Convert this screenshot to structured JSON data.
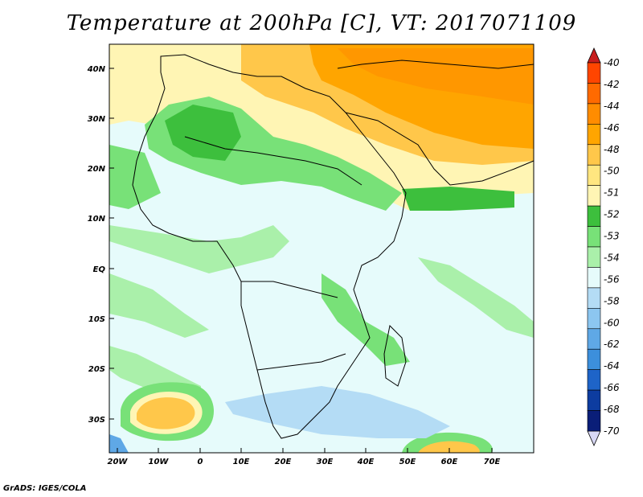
{
  "title": "Temperature at 200hPa [C], VT: 2017071109",
  "footer": "GrADS: IGES/COLA",
  "map": {
    "lat_labels": [
      "40N",
      "30N",
      "20N",
      "10N",
      "EQ",
      "10S",
      "20S",
      "30S"
    ],
    "lon_labels": [
      "20W",
      "10W",
      "0",
      "10E",
      "20E",
      "30E",
      "40E",
      "50E",
      "60E",
      "70E"
    ]
  },
  "colorbar": {
    "labels": [
      "-40",
      "-42",
      "-44",
      "-46",
      "-48",
      "-50",
      "-51",
      "-52",
      "-53",
      "-54",
      "-56",
      "-58",
      "-60",
      "-62",
      "-64",
      "-66",
      "-68",
      "-70"
    ],
    "colors": [
      "#c81e1e",
      "#ff4500",
      "#ff6a00",
      "#ff8c00",
      "#ffa500",
      "#ffc74a",
      "#ffe680",
      "#fff5b4",
      "#3dbf3d",
      "#78e178",
      "#aaf0aa",
      "#e6fbfb",
      "#b4dcf5",
      "#8cc6f0",
      "#5fa8e6",
      "#3c8fdc",
      "#1e64c8",
      "#0d3ca0",
      "#0a1e78",
      "#d8d8f5"
    ]
  }
}
